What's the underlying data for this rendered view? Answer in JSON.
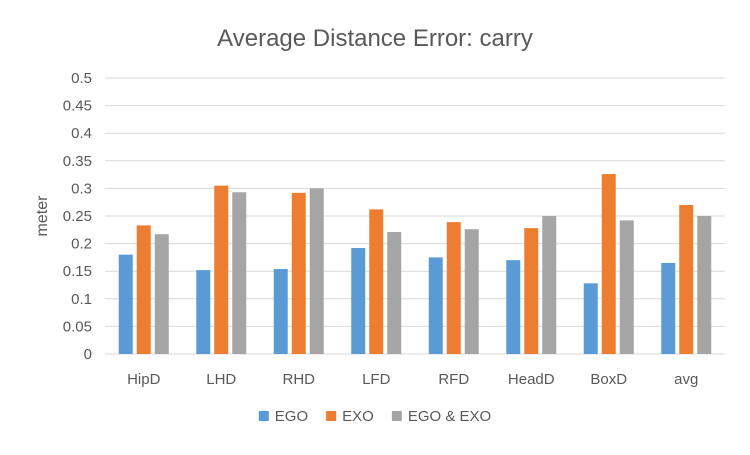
{
  "chart_data": {
    "type": "bar",
    "title": "Average Distance Error: carry",
    "xlabel": "",
    "ylabel": "meter",
    "ylim": [
      0,
      0.5
    ],
    "yticks": [
      "0",
      "0.05",
      "0.1",
      "0.15",
      "0.2",
      "0.25",
      "0.3",
      "0.35",
      "0.4",
      "0.45",
      "0.5"
    ],
    "ytick_values": [
      0,
      0.05,
      0.1,
      0.15,
      0.2,
      0.25,
      0.3,
      0.35,
      0.4,
      0.45,
      0.5
    ],
    "grid": true,
    "legend_position": "bottom",
    "categories": [
      "HipD",
      "LHD",
      "RHD",
      "LFD",
      "RFD",
      "HeadD",
      "BoxD",
      "avg"
    ],
    "series": [
      {
        "name": "EGO",
        "color": "#5B9BD5",
        "values": [
          0.18,
          0.152,
          0.154,
          0.192,
          0.175,
          0.17,
          0.128,
          0.165
        ]
      },
      {
        "name": "EXO",
        "color": "#ED7D31",
        "values": [
          0.233,
          0.305,
          0.292,
          0.262,
          0.239,
          0.228,
          0.326,
          0.27
        ]
      },
      {
        "name": "EGO & EXO",
        "color": "#A5A5A5",
        "values": [
          0.217,
          0.293,
          0.3,
          0.221,
          0.226,
          0.25,
          0.242,
          0.25
        ]
      }
    ]
  }
}
